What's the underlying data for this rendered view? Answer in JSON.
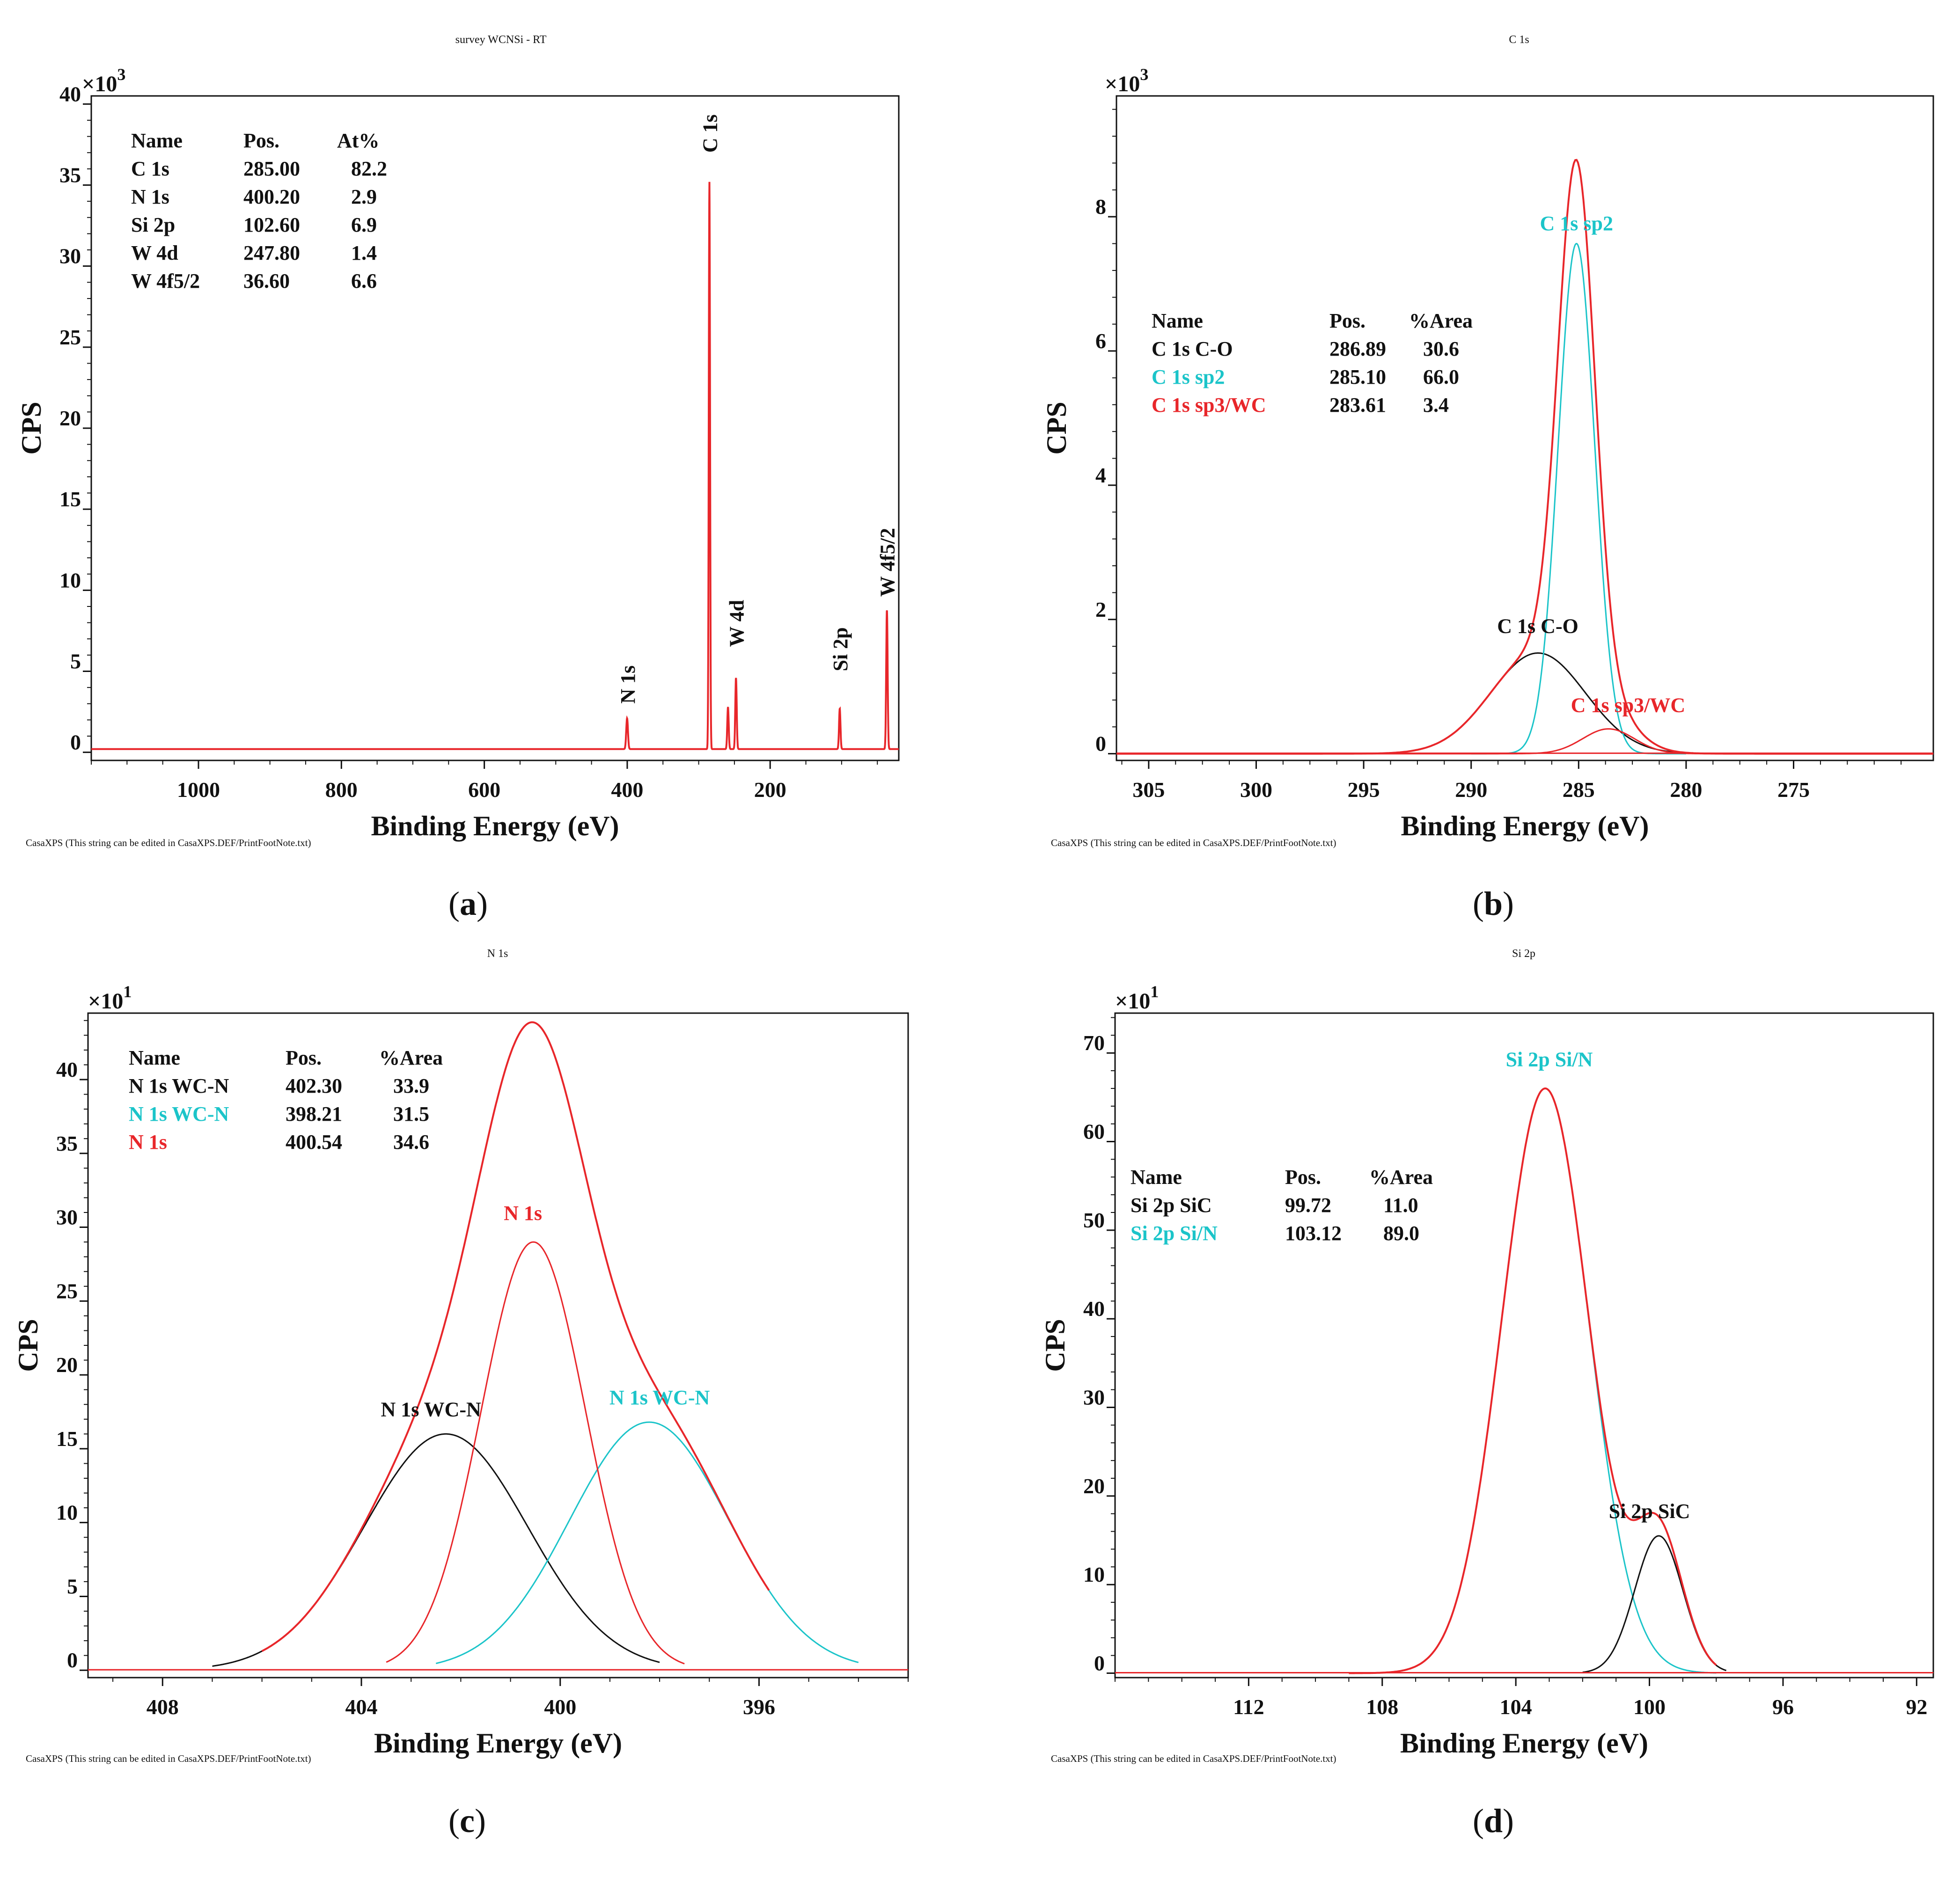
{
  "colors": {
    "black": "#111111",
    "red": "#e8262a",
    "cyan": "#1bc4c9"
  },
  "axis": {
    "ylabel": "CPS",
    "xlabel": "Binding Energy (eV)"
  },
  "footnote": "CasaXPS (This string can be edited in CasaXPS.DEF/PrintFootNote.txt)",
  "panels": [
    {
      "label": "a",
      "header": "survey WCNSi - RT",
      "multiplier_base": "×10",
      "multiplier_exp": "3",
      "table_headers": [
        "Name",
        "Pos.",
        "At%"
      ],
      "table_rows": [
        {
          "name": "C 1s",
          "pos": "285.00",
          "val": "82.2",
          "color": "black"
        },
        {
          "name": "N 1s",
          "pos": "400.20",
          "val": "2.9",
          "color": "black"
        },
        {
          "name": "Si 2p",
          "pos": "102.60",
          "val": "6.9",
          "color": "black"
        },
        {
          "name": "W 4d",
          "pos": "247.80",
          "val": "1.4",
          "color": "black"
        },
        {
          "name": "W 4f5/2",
          "pos": "36.60",
          "val": "6.6",
          "color": "black"
        }
      ],
      "peak_labels": [
        {
          "text": "N 1s",
          "x": 400,
          "y": 3,
          "rotate": true,
          "color": "black"
        },
        {
          "text": "C 1s",
          "x": 285,
          "y": 37,
          "rotate": true,
          "color": "black"
        },
        {
          "text": "W 4d",
          "x": 247.8,
          "y": 6.5,
          "rotate": true,
          "color": "black"
        },
        {
          "text": "Si 2p",
          "x": 102.6,
          "y": 5,
          "rotate": true,
          "color": "black"
        },
        {
          "text": "W 4f5/2",
          "x": 36.6,
          "y": 9.6,
          "rotate": true,
          "color": "black"
        }
      ]
    },
    {
      "label": "b",
      "header": "C 1s",
      "multiplier_base": "×10",
      "multiplier_exp": "3",
      "table_headers": [
        "Name",
        "Pos.",
        "%Area"
      ],
      "table_rows": [
        {
          "name": "C 1s C-O",
          "pos": "286.89",
          "val": "30.6",
          "color": "black"
        },
        {
          "name": "C 1s  sp2",
          "pos": "285.10",
          "val": "66.0",
          "color": "cyan"
        },
        {
          "name": "C 1s sp3/WC",
          "pos": "283.61",
          "val": "3.4",
          "color": "red"
        }
      ],
      "peak_labels": [
        {
          "text": "C 1s  sp2",
          "x": 285.1,
          "y": 7.8,
          "rotate": false,
          "color": "cyan"
        },
        {
          "text": "C 1s C-O",
          "x": 286.9,
          "y": 1.8,
          "rotate": false,
          "color": "black"
        },
        {
          "text": "C 1s sp3/WC",
          "x": 282.7,
          "y": 0.62,
          "rotate": false,
          "color": "red"
        }
      ]
    },
    {
      "label": "c",
      "header": "N 1s",
      "multiplier_base": "×10",
      "multiplier_exp": "1",
      "table_headers": [
        "Name",
        "Pos.",
        "%Area"
      ],
      "table_rows": [
        {
          "name": "N 1s  WC-N",
          "pos": "402.30",
          "val": "33.9",
          "color": "black"
        },
        {
          "name": "N 1s WC-N",
          "pos": "398.21",
          "val": "31.5",
          "color": "cyan"
        },
        {
          "name": "N 1s",
          "pos": "400.54",
          "val": "34.6",
          "color": "red"
        }
      ],
      "peak_labels": [
        {
          "text": "N 1s",
          "x": 400.75,
          "y": 30.5,
          "rotate": false,
          "color": "red"
        },
        {
          "text": "N 1s  WC-N",
          "x": 402.6,
          "y": 17.2,
          "rotate": false,
          "color": "black"
        },
        {
          "text": "N 1s WC-N",
          "x": 398.0,
          "y": 18.0,
          "rotate": false,
          "color": "cyan"
        }
      ]
    },
    {
      "label": "d",
      "header": "Si 2p",
      "multiplier_base": "×10",
      "multiplier_exp": "1",
      "table_headers": [
        "Name",
        "Pos.",
        "%Area"
      ],
      "table_rows": [
        {
          "name": "Si 2p  SiC",
          "pos": "99.72",
          "val": "11.0",
          "color": "black"
        },
        {
          "name": "Si 2p Si/N",
          "pos": "103.12",
          "val": "89.0",
          "color": "cyan"
        }
      ],
      "peak_labels": [
        {
          "text": "Si 2p Si/N",
          "x": 103.0,
          "y": 68.5,
          "rotate": false,
          "color": "cyan"
        },
        {
          "text": "Si 2p  SiC",
          "x": 100.0,
          "y": 17.5,
          "rotate": false,
          "color": "black"
        }
      ]
    }
  ],
  "chart_data": [
    {
      "type": "line",
      "title": "survey WCNSi - RT",
      "xlabel": "Binding Energy (eV)",
      "ylabel": "CPS",
      "y_multiplier": "×10^3",
      "xlim": [
        1150,
        20
      ],
      "ylim": [
        -0.5,
        40.5
      ],
      "xticks": [
        1000,
        800,
        600,
        400,
        200
      ],
      "yticks": [
        0,
        5,
        10,
        15,
        20,
        25,
        30,
        35,
        40
      ],
      "series": [
        {
          "name": "survey",
          "color": "red",
          "baseline": 0.2,
          "peaks": [
            {
              "center": 400.2,
              "height": 1.9,
              "width": 1.2
            },
            {
              "center": 285.0,
              "height": 35.0,
              "width": 0.9
            },
            {
              "center": 259.0,
              "height": 2.6,
              "width": 1.0
            },
            {
              "center": 247.8,
              "height": 4.4,
              "width": 1.0
            },
            {
              "center": 102.6,
              "height": 2.5,
              "width": 1.0
            },
            {
              "center": 36.6,
              "height": 8.6,
              "width": 1.0
            }
          ]
        }
      ]
    },
    {
      "type": "line",
      "title": "C 1s",
      "xlabel": "Binding Energy (eV)",
      "ylabel": "CPS",
      "y_multiplier": "×10^3",
      "xlim": [
        306.5,
        268.5
      ],
      "ylim": [
        -0.1,
        9.8
      ],
      "xticks": [
        305,
        300,
        295,
        290,
        285,
        280,
        275
      ],
      "yticks": [
        0,
        2,
        4,
        6,
        8
      ],
      "series": [
        {
          "name": "C 1s C-O",
          "color": "black",
          "center": 286.89,
          "height": 1.5,
          "sigma": 2.2,
          "range": [
            295,
            279
          ]
        },
        {
          "name": "C 1s  sp2",
          "color": "cyan",
          "center": 285.1,
          "height": 7.6,
          "sigma": 0.85,
          "range": [
            290,
            280
          ]
        },
        {
          "name": "C 1s sp3/WC",
          "color": "red",
          "center": 283.61,
          "height": 0.37,
          "sigma": 1.2,
          "range": [
            306.5,
            268.5
          ]
        },
        {
          "name": "envelope",
          "color": "red",
          "sum": true,
          "range": [
            306.5,
            268.5
          ]
        }
      ]
    },
    {
      "type": "line",
      "title": "N 1s",
      "xlabel": "Binding Energy (eV)",
      "ylabel": "CPS",
      "y_multiplier": "×10^1",
      "xlim": [
        409.5,
        393.0
      ],
      "ylim": [
        -0.5,
        44.5
      ],
      "xticks": [
        408,
        404,
        400,
        396
      ],
      "yticks": [
        0,
        5,
        10,
        15,
        20,
        25,
        30,
        35,
        40
      ],
      "series": [
        {
          "name": "N 1s  WC-N",
          "color": "black",
          "center": 402.3,
          "height": 16.0,
          "sigma": 1.65,
          "range": [
            407.0,
            398.0
          ]
        },
        {
          "name": "N 1s WC-N",
          "color": "cyan",
          "center": 398.21,
          "height": 16.8,
          "sigma": 1.6,
          "range": [
            402.5,
            394.0
          ]
        },
        {
          "name": "N 1s",
          "color": "red",
          "center": 400.54,
          "height": 29.0,
          "sigma": 1.05,
          "range": [
            403.5,
            397.5
          ]
        },
        {
          "name": "envelope",
          "color": "red",
          "sum": true,
          "range": [
            406.0,
            395.8
          ]
        }
      ]
    },
    {
      "type": "line",
      "title": "Si 2p",
      "xlabel": "Binding Energy (eV)",
      "ylabel": "CPS",
      "y_multiplier": "×10^1",
      "xlim": [
        116.0,
        91.5
      ],
      "ylim": [
        -0.5,
        74.5
      ],
      "xticks": [
        112,
        108,
        104,
        100,
        96,
        92
      ],
      "yticks": [
        0,
        10,
        20,
        30,
        40,
        50,
        60,
        70
      ],
      "series": [
        {
          "name": "Si 2p Si/N",
          "color": "cyan",
          "center": 103.12,
          "height": 66.0,
          "sigma": 1.3,
          "range": [
            107.5,
            98.0
          ]
        },
        {
          "name": "Si 2p  SiC",
          "color": "black",
          "center": 99.72,
          "height": 15.5,
          "sigma": 0.72,
          "range": [
            102.0,
            97.7
          ]
        },
        {
          "name": "envelope",
          "color": "red",
          "sum": true,
          "range": [
            109.0,
            98.0
          ]
        }
      ]
    }
  ]
}
